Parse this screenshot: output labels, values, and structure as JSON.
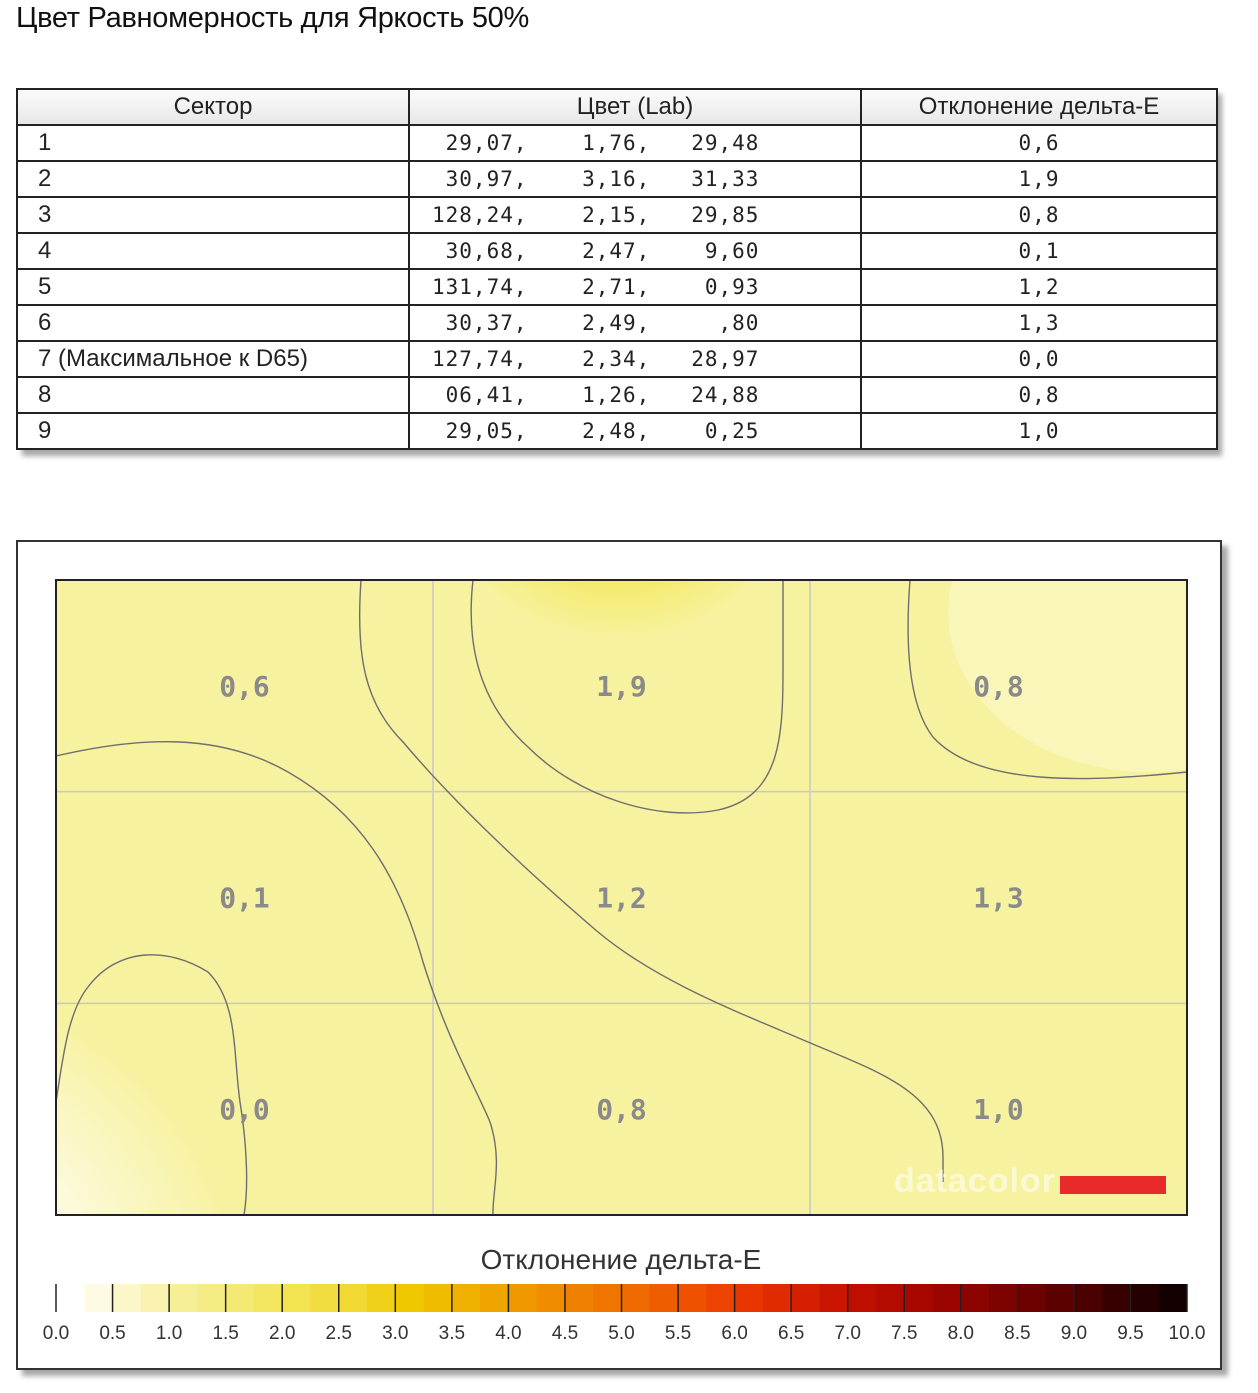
{
  "title": "Цвет Равномерность для Яркость 50%",
  "table": {
    "headers": [
      "Сектор",
      "Цвет (Lab)",
      "Отклонение дельта-E"
    ],
    "rows": [
      {
        "sector": "1",
        "lab": " 29,07,    1,76,   29,48",
        "de": "0,6"
      },
      {
        "sector": "2",
        "lab": " 30,97,    3,16,   31,33",
        "de": "1,9"
      },
      {
        "sector": "3",
        "lab": "128,24,    2,15,   29,85",
        "de": "0,8"
      },
      {
        "sector": "4",
        "lab": " 30,68,    2,47,    9,60",
        "de": "0,1"
      },
      {
        "sector": "5",
        "lab": "131,74,    2,71,    0,93",
        "de": "1,2"
      },
      {
        "sector": "6",
        "lab": " 30,37,    2,49,     ,80",
        "de": "1,3"
      },
      {
        "sector": "7 (Максимальное к D65)",
        "lab": "127,74,    2,34,   28,97",
        "de": "0,0"
      },
      {
        "sector": "8",
        "lab": " 06,41,    1,26,   24,88",
        "de": "0,8"
      },
      {
        "sector": "9",
        "lab": " 29,05,    2,48,    0,25",
        "de": "1,0"
      }
    ]
  },
  "chart_data": {
    "type": "heatmap",
    "grid_rows": 3,
    "grid_cols": 3,
    "values": [
      [
        0.6,
        1.9,
        0.8
      ],
      [
        0.1,
        1.2,
        1.3
      ],
      [
        0.0,
        0.8,
        1.0
      ]
    ],
    "cell_labels": [
      [
        "0,6",
        "1,9",
        "0,8"
      ],
      [
        "0,1",
        "1,2",
        "1,3"
      ],
      [
        "0,0",
        "0,8",
        "1,0"
      ]
    ],
    "contour_levels": [
      0.5,
      1.0,
      1.5
    ],
    "watermark": "datacolor",
    "scale": {
      "title": "Отклонение дельта-E",
      "min": 0.0,
      "max": 10.0,
      "ticks": [
        "0.0",
        "0.5",
        "1.0",
        "1.5",
        "2.0",
        "2.5",
        "3.0",
        "3.5",
        "4.0",
        "4.5",
        "5.0",
        "5.5",
        "6.0",
        "6.5",
        "7.0",
        "7.5",
        "8.0",
        "8.5",
        "9.0",
        "9.5",
        "10.0"
      ],
      "colors": [
        "#ffffff",
        "#fbf7c8",
        "#f7ef96",
        "#f4ea73",
        "#f2e350",
        "#f2d832",
        "#f0c800",
        "#f0b000",
        "#f09800",
        "#f08000",
        "#ef6a00",
        "#ee5200",
        "#e93600",
        "#d41f00",
        "#bf0e00",
        "#a80700",
        "#8c0400",
        "#6c0200",
        "#4a0100",
        "#240000",
        "#000000"
      ]
    }
  }
}
